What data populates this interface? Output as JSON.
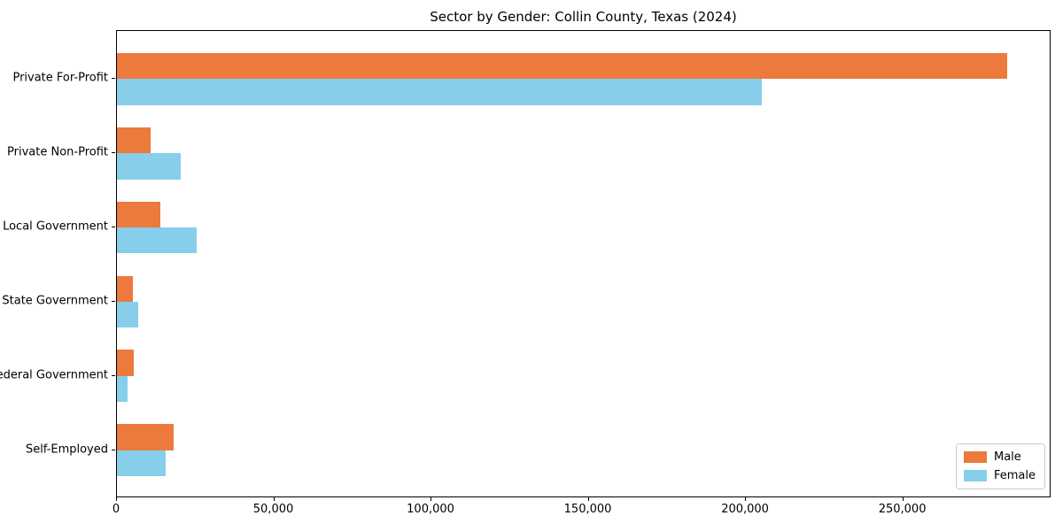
{
  "chart_data": {
    "type": "bar",
    "orientation": "horizontal",
    "title": "Sector by Gender: Collin County, Texas (2024)",
    "categories": [
      "Private For-Profit",
      "Private Non-Profit",
      "Local Government",
      "State Government",
      "Federal Government",
      "Self-Employed"
    ],
    "series": [
      {
        "name": "Male",
        "color": "#EC7A3C",
        "values": [
          283000,
          10700,
          13800,
          5100,
          5400,
          18000
        ]
      },
      {
        "name": "Female",
        "color": "#87CEEB",
        "values": [
          205000,
          20300,
          25400,
          6800,
          3400,
          15500
        ]
      }
    ],
    "xlim": [
      0,
      297150
    ],
    "x_ticks": [
      0,
      50000,
      100000,
      150000,
      200000,
      250000
    ],
    "x_tick_labels": [
      "0",
      "50,000",
      "100,000",
      "150,000",
      "200,000",
      "250,000"
    ],
    "xlabel": "",
    "ylabel": "",
    "grid": false,
    "legend_position": "lower right"
  }
}
